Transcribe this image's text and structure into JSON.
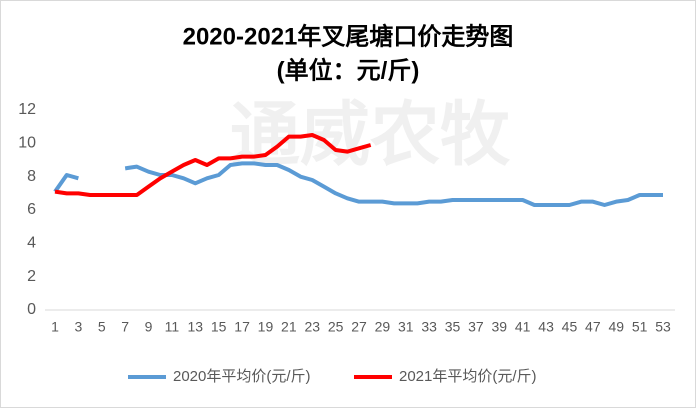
{
  "chart_data": {
    "type": "line",
    "title": "2020-2021年叉尾塘口价走势图",
    "subtitle": "(单位：元/斤)",
    "watermark": "通威农牧",
    "categories": [
      "1",
      null,
      "3",
      null,
      "5",
      null,
      "7",
      null,
      "9",
      null,
      "11",
      null,
      "13",
      null,
      "15",
      null,
      "17",
      null,
      "19",
      null,
      "21",
      null,
      "23",
      null,
      "25",
      null,
      "27",
      null,
      "29",
      null,
      "31",
      null,
      "33",
      null,
      "35",
      null,
      "37",
      null,
      "39",
      null,
      "41",
      null,
      "43",
      null,
      "45",
      null,
      "47",
      null,
      "49",
      null,
      "51",
      null,
      "53"
    ],
    "series": [
      {
        "name": "2020年平均价(元/斤)",
        "color": "#5b9bd5",
        "values": [
          7.1,
          8.1,
          7.9,
          null,
          null,
          null,
          8.5,
          8.6,
          8.3,
          8.1,
          8.1,
          7.9,
          7.6,
          7.9,
          8.1,
          8.7,
          8.8,
          8.8,
          8.7,
          8.7,
          8.4,
          8.0,
          7.8,
          7.4,
          7.0,
          6.7,
          6.5,
          6.5,
          6.5,
          6.4,
          6.4,
          6.4,
          6.5,
          6.5,
          6.6,
          6.6,
          6.6,
          6.6,
          6.6,
          6.6,
          6.6,
          6.3,
          6.3,
          6.3,
          6.3,
          6.5,
          6.5,
          6.3,
          6.5,
          6.6,
          6.9,
          6.9,
          6.9
        ]
      },
      {
        "name": "2021年平均价(元/斤)",
        "color": "#ff0000",
        "values": [
          7.1,
          7.0,
          7.0,
          6.9,
          6.9,
          6.9,
          6.9,
          6.9,
          7.4,
          7.9,
          8.3,
          8.7,
          9.0,
          8.7,
          9.1,
          9.1,
          9.2,
          9.2,
          9.3,
          9.8,
          10.4,
          10.4,
          10.5,
          10.2,
          9.6,
          9.5,
          9.7,
          9.9,
          null,
          null,
          null,
          null,
          null,
          null,
          null,
          null,
          null,
          null,
          null,
          null,
          null,
          null,
          null,
          null,
          null,
          null,
          null,
          null,
          null,
          null,
          null,
          null,
          null
        ]
      }
    ],
    "ylim": [
      0,
      12
    ],
    "yticks": [
      0,
      2,
      4,
      6,
      8,
      10,
      12
    ],
    "grid": false,
    "legend": "bottom"
  }
}
